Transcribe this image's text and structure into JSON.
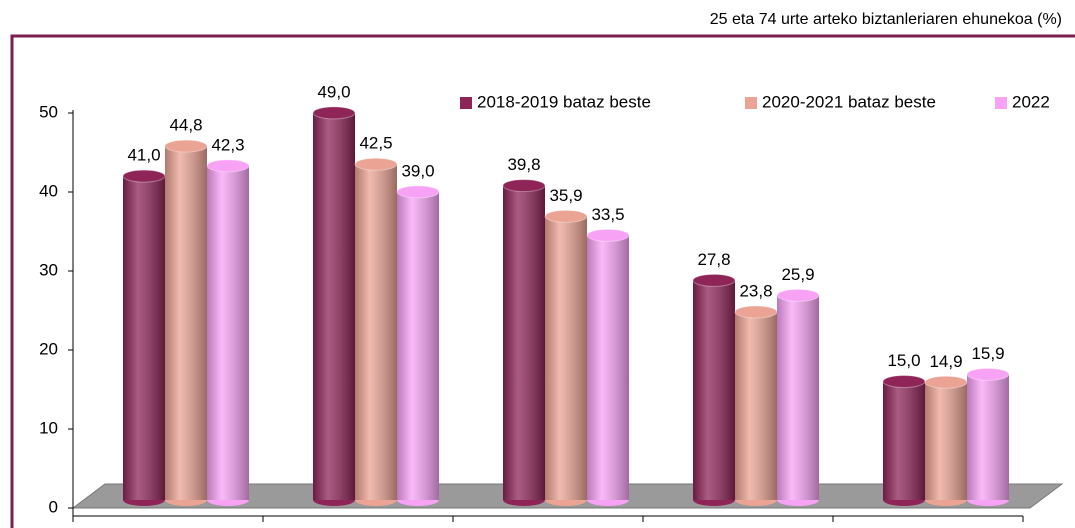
{
  "chart_data": {
    "type": "bar",
    "subtitle": "25 eta 74 urte arteko biztanleriaren ehunekoa (%)",
    "categories": [
      null,
      null,
      null,
      null,
      null
    ],
    "series": [
      {
        "name": "2018-2019 bataz beste",
        "color": "#8e2457",
        "values": [
          41.0,
          49.0,
          39.8,
          27.8,
          15.0
        ],
        "value_labels": [
          "41,0",
          "49,0",
          "39,8",
          "27,8",
          "15,0"
        ]
      },
      {
        "name": "2020-2021 bataz beste",
        "color": "#eba394",
        "values": [
          44.8,
          42.5,
          35.9,
          23.8,
          14.9
        ],
        "value_labels": [
          "44,8",
          "42,5",
          "35,9",
          "23,8",
          "14,9"
        ]
      },
      {
        "name": "2022",
        "color": "#f8a2f6",
        "values": [
          42.3,
          39.0,
          33.5,
          25.9,
          15.9
        ],
        "value_labels": [
          "42,3",
          "39,0",
          "33,5",
          "25,9",
          "15,9"
        ]
      }
    ],
    "ylim": [
      0,
      50
    ],
    "yticks": [
      0,
      10,
      20,
      30,
      40,
      50
    ],
    "legend": "top-right"
  }
}
